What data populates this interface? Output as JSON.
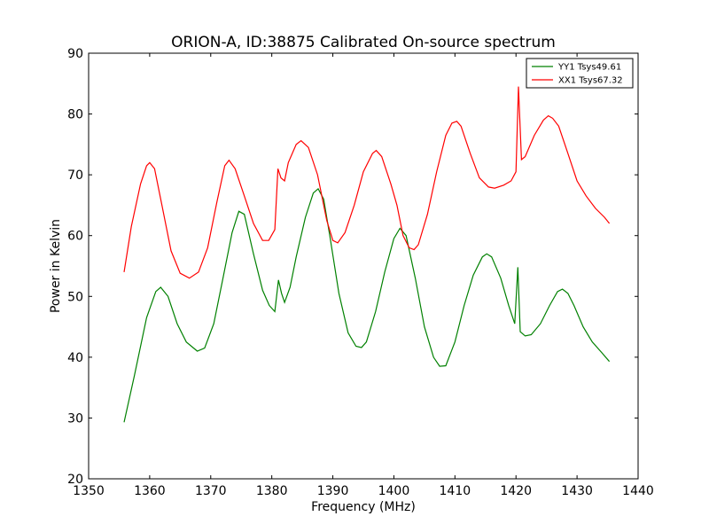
{
  "chart_data": {
    "type": "line",
    "title": "ORION-A, ID:38875 Calibrated On-source spectrum",
    "xlabel": "Frequency (MHz)",
    "ylabel": "Power in Kelvin",
    "xlim": [
      1350,
      1440
    ],
    "ylim": [
      20,
      90
    ],
    "xticks": [
      1350,
      1360,
      1370,
      1380,
      1390,
      1400,
      1410,
      1420,
      1430,
      1440
    ],
    "yticks": [
      20,
      30,
      40,
      50,
      60,
      70,
      80,
      90
    ],
    "grid": false,
    "legend_position": "top-right",
    "series": [
      {
        "name": "YY1 Tsys49.61",
        "color": "#008000",
        "x": [
          1355.8,
          1357.5,
          1359.5,
          1361.0,
          1361.8,
          1363.0,
          1364.5,
          1366.0,
          1367.8,
          1369.0,
          1370.5,
          1372.0,
          1373.5,
          1374.6,
          1375.5,
          1377.0,
          1378.5,
          1379.6,
          1380.5,
          1381.1,
          1381.6,
          1382.1,
          1383.0,
          1384.0,
          1385.5,
          1386.8,
          1387.6,
          1388.5,
          1389.5,
          1391.0,
          1392.5,
          1393.8,
          1394.7,
          1395.5,
          1397.0,
          1398.5,
          1400.0,
          1401.0,
          1402.0,
          1403.5,
          1405.0,
          1406.5,
          1407.5,
          1408.5,
          1410.0,
          1411.5,
          1413.0,
          1414.5,
          1415.2,
          1416.0,
          1417.5,
          1418.8,
          1419.8,
          1420.3,
          1420.7,
          1421.5,
          1422.5,
          1424.0,
          1425.5,
          1426.8,
          1427.6,
          1428.5,
          1429.5,
          1431.0,
          1432.5,
          1434.0,
          1435.3
        ],
        "y": [
          29.3,
          37.0,
          46.5,
          50.8,
          51.5,
          50.0,
          45.5,
          42.5,
          41.0,
          41.5,
          45.5,
          53.0,
          60.5,
          64.0,
          63.5,
          57.0,
          51.0,
          48.5,
          47.5,
          52.7,
          50.5,
          49.0,
          51.5,
          56.5,
          63.0,
          67.0,
          67.7,
          66.0,
          60.0,
          50.5,
          44.0,
          41.8,
          41.6,
          42.5,
          47.5,
          54.0,
          59.5,
          61.2,
          60.0,
          53.0,
          45.0,
          40.0,
          38.5,
          38.6,
          42.5,
          48.5,
          53.5,
          56.5,
          57.0,
          56.5,
          53.0,
          48.5,
          45.5,
          54.8,
          44.2,
          43.5,
          43.7,
          45.5,
          48.5,
          50.8,
          51.2,
          50.5,
          48.5,
          45.0,
          42.5,
          40.8,
          39.3
        ]
      },
      {
        "name": "XX1 Tsys67.32",
        "color": "#ff0000",
        "x": [
          1355.8,
          1357.0,
          1358.5,
          1359.5,
          1360.0,
          1360.8,
          1362.0,
          1363.5,
          1365.0,
          1366.5,
          1368.0,
          1369.5,
          1371.0,
          1372.3,
          1373.0,
          1374.0,
          1375.5,
          1377.0,
          1378.5,
          1379.5,
          1380.5,
          1381.0,
          1381.5,
          1382.1,
          1382.7,
          1384.0,
          1384.8,
          1386.0,
          1387.5,
          1389.0,
          1390.0,
          1390.8,
          1392.0,
          1393.5,
          1395.0,
          1396.5,
          1397.1,
          1398.0,
          1399.5,
          1400.5,
          1401.5,
          1402.5,
          1403.3,
          1404.0,
          1405.5,
          1407.0,
          1408.5,
          1409.5,
          1410.3,
          1411.0,
          1412.5,
          1414.0,
          1415.5,
          1416.5,
          1418.0,
          1419.2,
          1420.0,
          1420.4,
          1420.9,
          1421.5,
          1423.0,
          1424.5,
          1425.3,
          1426.0,
          1427.0,
          1428.5,
          1430.0,
          1431.5,
          1433.0,
          1434.5,
          1435.3
        ],
        "y": [
          54.0,
          61.5,
          68.5,
          71.5,
          72.0,
          71.0,
          65.0,
          57.5,
          53.8,
          53.0,
          54.0,
          58.0,
          65.5,
          71.5,
          72.4,
          71.0,
          66.5,
          62.0,
          59.2,
          59.2,
          61.0,
          71.0,
          69.5,
          69.0,
          72.0,
          75.0,
          75.6,
          74.5,
          70.0,
          62.5,
          59.2,
          58.8,
          60.5,
          65.0,
          70.5,
          73.5,
          74.0,
          73.0,
          68.5,
          65.0,
          60.0,
          58.0,
          57.7,
          58.5,
          63.5,
          70.5,
          76.5,
          78.5,
          78.8,
          78.0,
          73.5,
          69.5,
          68.0,
          67.8,
          68.3,
          69.0,
          70.5,
          84.5,
          72.5,
          73.0,
          76.5,
          79.0,
          79.7,
          79.3,
          78.0,
          73.5,
          69.0,
          66.5,
          64.5,
          63.0,
          62.0
        ]
      }
    ]
  }
}
